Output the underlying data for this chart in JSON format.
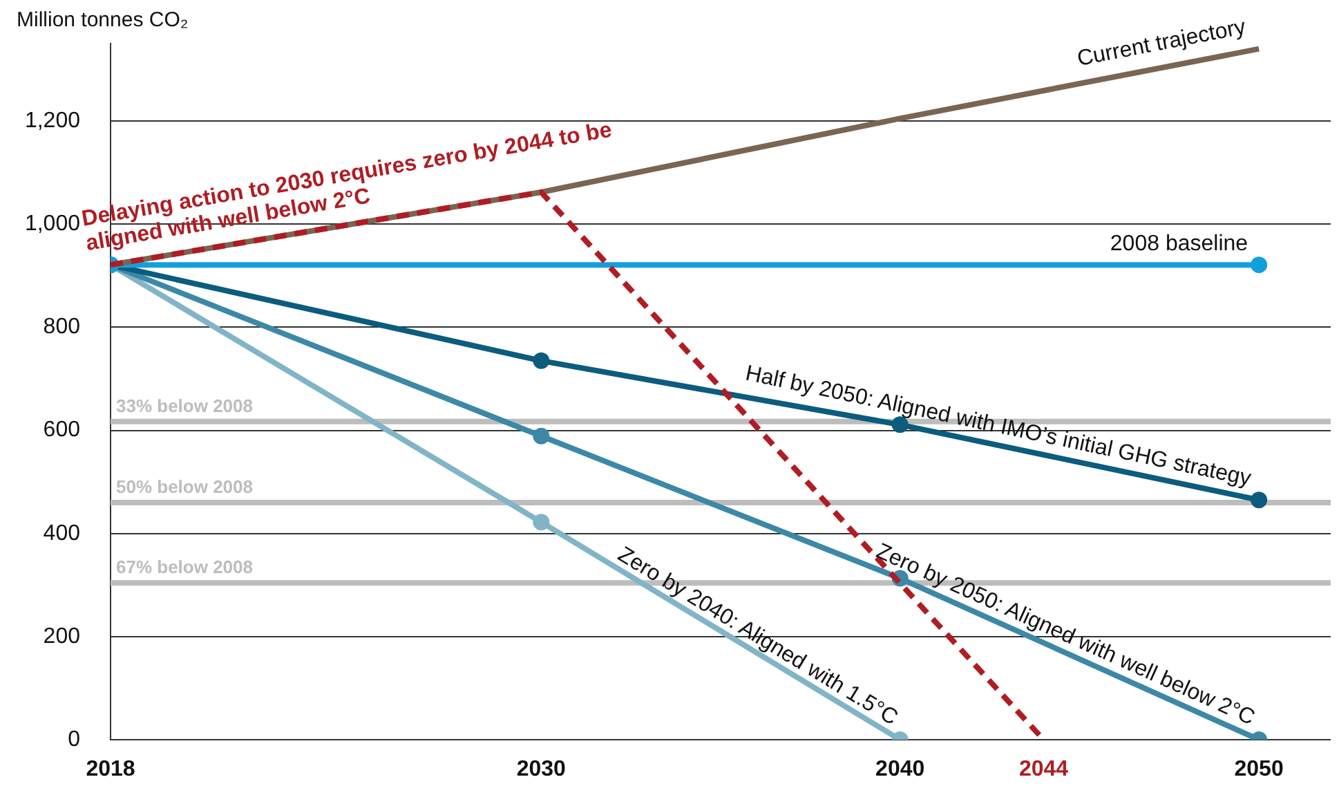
{
  "chart_data": {
    "type": "line",
    "ylabel": "Million tonnes CO₂",
    "xlim": [
      2018,
      2052
    ],
    "ylim": [
      0,
      1350
    ],
    "xticks": [
      2018,
      2030,
      2040,
      2044,
      2050
    ],
    "yticks": [
      0,
      {
        "value": 200,
        "label": "200"
      },
      {
        "value": 400,
        "label": "400"
      },
      {
        "value": 600,
        "label": "600"
      },
      {
        "value": 800,
        "label": "800"
      },
      {
        "value": 1000,
        "label": "1,000"
      },
      {
        "value": 1200,
        "label": "1,200"
      }
    ],
    "grid": "y",
    "legend": false,
    "marker": "circle",
    "line_style": "solid",
    "series": [
      {
        "name": "Current trajectory",
        "color": "#7a6553",
        "x": [
          2018,
          2030,
          2040,
          2050
        ],
        "values": [
          921,
          1062,
          1205,
          1340
        ],
        "marker": "none"
      },
      {
        "name": "2008 baseline",
        "color": "#12a0dc",
        "x": [
          2018,
          2050
        ],
        "values": [
          921,
          921
        ]
      },
      {
        "name": "Half by 2050: Aligned with IMO’s initial GHG strategy",
        "color": "#0b5c7d",
        "x": [
          2018,
          2030,
          2040,
          2050
        ],
        "values": [
          921,
          735,
          611,
          465
        ]
      },
      {
        "name": "Zero by 2050: Aligned with well below 2°C",
        "color": "#3c88a6",
        "x": [
          2018,
          2030,
          2040,
          2050
        ],
        "values": [
          921,
          589,
          313,
          0
        ]
      },
      {
        "name": "Zero by 2040: Aligned with 1.5°C",
        "color": "#82b4c8",
        "x": [
          2018,
          2030,
          2040
        ],
        "values": [
          921,
          422,
          0
        ]
      },
      {
        "name": "Delaying action to 2030 requires zero by 2044 to be aligned with well below 2°C",
        "color": "#b01c23",
        "x": [
          2018,
          2030,
          2044
        ],
        "values": [
          921,
          1062,
          0
        ],
        "marker": "none",
        "line_style": "dashed"
      }
    ],
    "ref_lines": [
      {
        "axis": "y",
        "value": 617,
        "label": "33% below 2008",
        "color": "#bdbdbd"
      },
      {
        "axis": "y",
        "value": 460,
        "label": "50% below 2008",
        "color": "#bdbdbd"
      },
      {
        "axis": "y",
        "value": 304,
        "label": "67% below 2008",
        "color": "#bdbdbd"
      }
    ]
  }
}
